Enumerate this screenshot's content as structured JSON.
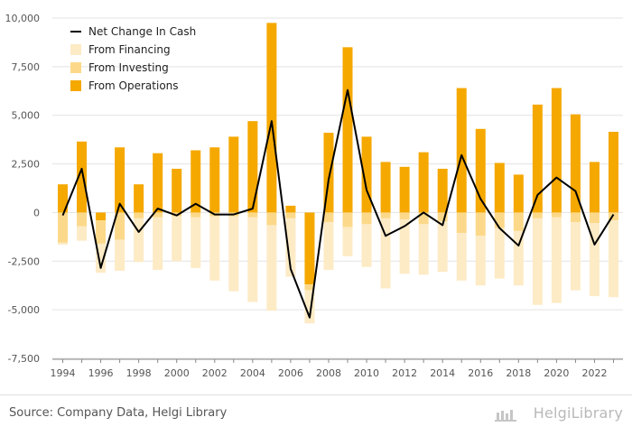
{
  "chart_data": {
    "type": "bar",
    "stacked": true,
    "title": "",
    "xlabel": "",
    "ylabel": "",
    "ylim": [
      -7500,
      10000
    ],
    "yticks": [
      10000,
      7500,
      5000,
      2500,
      0,
      -2500,
      -5000,
      -7500
    ],
    "ytick_labels": [
      "10,000",
      "7,500",
      "5,000",
      "2,500",
      "0",
      "-2,500",
      "-5,000",
      "-7,500"
    ],
    "xtick_labels": [
      "1994",
      "1996",
      "1998",
      "2000",
      "2002",
      "2004",
      "2006",
      "2008",
      "2010",
      "2012",
      "2014",
      "2016",
      "2018",
      "2020",
      "2022"
    ],
    "grid": "horizontal",
    "legend_position": "top-left",
    "categories": [
      1994,
      1995,
      1996,
      1997,
      1998,
      1999,
      2000,
      2001,
      2002,
      2003,
      2004,
      2005,
      2006,
      2007,
      2008,
      2009,
      2010,
      2011,
      2012,
      2013,
      2014,
      2015,
      2016,
      2017,
      2018,
      2019,
      2020,
      2021,
      2022,
      2023
    ],
    "series": [
      {
        "name": "From Operations",
        "kind": "bar",
        "color": "#f5a800",
        "values": [
          1450,
          3650,
          -400,
          3350,
          1450,
          3050,
          2250,
          3200,
          3350,
          3900,
          4700,
          9750,
          350,
          -3700,
          4100,
          8500,
          3900,
          2600,
          2350,
          3100,
          2250,
          6400,
          4300,
          2550,
          1950,
          5550,
          6400,
          5050,
          2600,
          4150
        ]
      },
      {
        "name": "From Investing",
        "kind": "bar",
        "color": "#fcd98a",
        "values": [
          -1550,
          -700,
          -1200,
          -1400,
          -300,
          -250,
          -200,
          -250,
          -200,
          -200,
          -250,
          -650,
          -300,
          -300,
          -500,
          -750,
          -600,
          -300,
          -350,
          -600,
          -450,
          -1050,
          -1200,
          -800,
          -950,
          -300,
          -250,
          -500,
          -550,
          -400
        ]
      },
      {
        "name": "From Financing",
        "kind": "bar",
        "color": "#fdebc6",
        "values": [
          -100,
          -750,
          -1500,
          -1600,
          -2250,
          -2700,
          -2300,
          -2600,
          -3300,
          -3850,
          -4350,
          -4400,
          -3000,
          -1700,
          -2450,
          -1500,
          -2200,
          -3600,
          -2800,
          -2600,
          -2600,
          -2450,
          -2550,
          -2600,
          -2800,
          -4450,
          -4400,
          -3500,
          -3750,
          -3950
        ]
      },
      {
        "name": "Net Change In Cash",
        "kind": "line",
        "color": "#000000",
        "values": [
          -150,
          2250,
          -2850,
          450,
          -1000,
          200,
          -150,
          450,
          -100,
          -100,
          200,
          4700,
          -2900,
          -5400,
          1700,
          6300,
          1150,
          -1200,
          -700,
          0,
          -650,
          2950,
          700,
          -800,
          -1700,
          900,
          1800,
          1100,
          -1650,
          -100
        ]
      }
    ]
  },
  "legend": [
    {
      "label": "Net Change In Cash",
      "kind": "line",
      "color": "#000000"
    },
    {
      "label": "From Financing",
      "kind": "box",
      "color": "#fdebc6"
    },
    {
      "label": "From Investing",
      "kind": "box",
      "color": "#fcd98a"
    },
    {
      "label": "From Operations",
      "kind": "box",
      "color": "#f5a800"
    }
  ],
  "footer": {
    "source": "Source: Company Data, Helgi Library",
    "brand": "HelgiLibrary"
  },
  "colors": {
    "grid": "#e3e3e3",
    "axis": "#888888"
  }
}
